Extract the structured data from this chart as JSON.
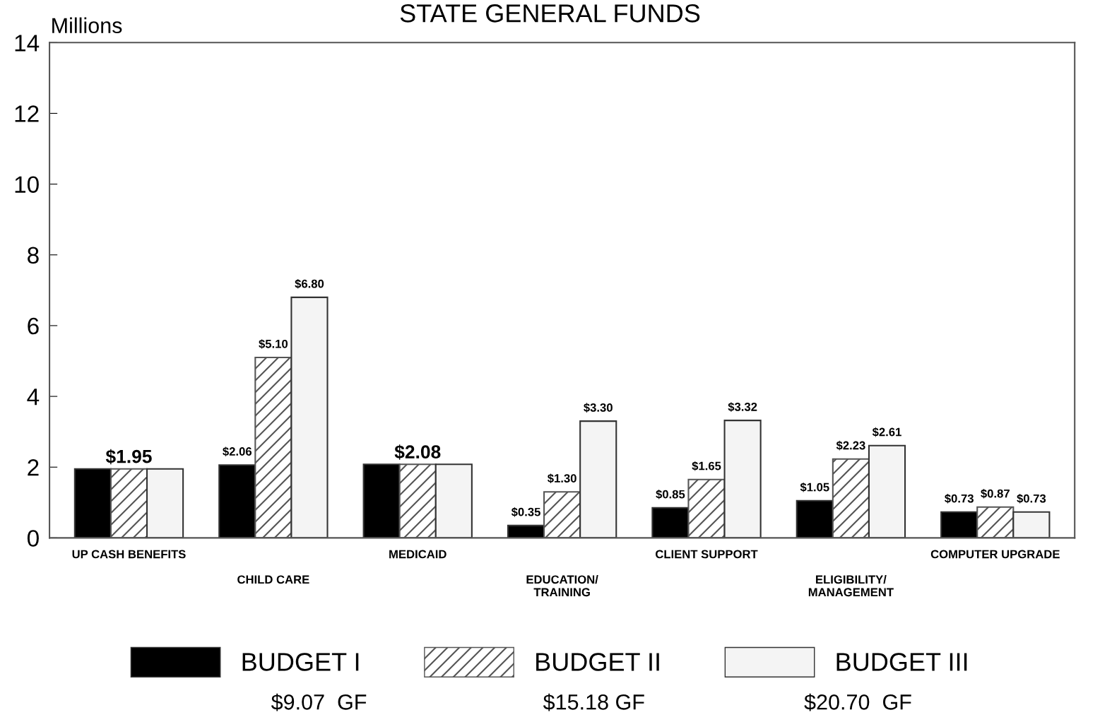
{
  "chart_data": {
    "type": "bar",
    "title": "STATE GENERAL FUNDS",
    "ylabel": "Millions",
    "categories": [
      "UP CASH BENEFITS",
      "CHILD CARE",
      "MEDICAID",
      "EDUCATION/\nTRAINING",
      "CLIENT SUPPORT",
      "ELIGIBILITY/\nMANAGEMENT",
      "COMPUTER UPGRADE"
    ],
    "series": [
      {
        "name": "BUDGET I",
        "color": "#000000",
        "values": [
          1.95,
          2.06,
          2.08,
          0.35,
          0.85,
          1.05,
          0.73
        ],
        "value_labels": [
          null,
          "$2.06",
          null,
          "$0.35",
          "$0.85",
          "$1.05",
          "$0.73"
        ]
      },
      {
        "name": "BUDGET II",
        "color": "#555555",
        "values": [
          1.95,
          5.1,
          2.08,
          1.3,
          1.65,
          2.23,
          0.87
        ],
        "value_labels": [
          "$1.95",
          "$5.10",
          "$2.08",
          "$1.30",
          "$1.65",
          "$2.23",
          "$0.87"
        ]
      },
      {
        "name": "BUDGET III",
        "color": "#f4f4f4",
        "values": [
          1.95,
          6.8,
          2.08,
          3.3,
          3.32,
          2.61,
          0.73
        ],
        "value_labels": [
          null,
          "$6.80",
          null,
          "$3.30",
          "$3.32",
          "$2.61",
          "$0.73"
        ]
      }
    ],
    "annotations": [
      "$9.07  GF",
      "$15.18 GF",
      "$20.70  GF"
    ],
    "ylim": [
      0,
      14
    ],
    "yticks": [
      0,
      2,
      4,
      6,
      8,
      10,
      12,
      14
    ],
    "grid": false,
    "legend": "bottom"
  }
}
